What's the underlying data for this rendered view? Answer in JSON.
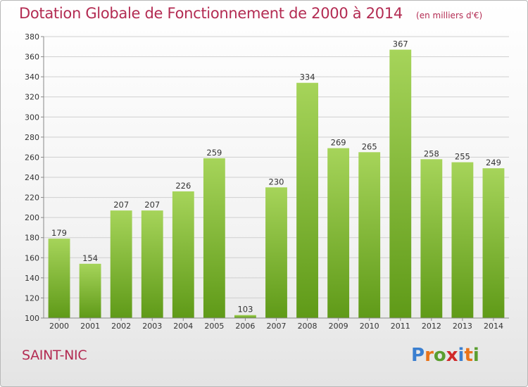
{
  "header": {
    "title": "Dotation Globale de Fonctionnement de 2000 à 2014",
    "subtitle": "(en milliers d'€)"
  },
  "footer": {
    "commune": "SAINT-NIC",
    "logo_text": "Proxiti",
    "logo_colors": [
      "#3a7fd0",
      "#e8731a",
      "#5a9e2f",
      "#d02a2a",
      "#3a7fd0",
      "#e8731a",
      "#5a9e2f"
    ]
  },
  "chart_data": {
    "type": "bar",
    "title": "Dotation Globale de Fonctionnement de 2000 à 2014",
    "subtitle": "(en milliers d'€)",
    "xlabel": "",
    "ylabel": "",
    "categories": [
      "2000",
      "2001",
      "2002",
      "2003",
      "2004",
      "2005",
      "2006",
      "2007",
      "2008",
      "2009",
      "2010",
      "2011",
      "2012",
      "2013",
      "2014"
    ],
    "values": [
      179,
      154,
      207,
      207,
      226,
      259,
      103,
      230,
      334,
      269,
      265,
      367,
      258,
      255,
      249
    ],
    "ylim": [
      100,
      380
    ],
    "yticks": [
      100,
      120,
      140,
      160,
      180,
      200,
      220,
      240,
      260,
      280,
      300,
      320,
      340,
      360,
      380
    ],
    "grid": true,
    "colors": {
      "bar_top": "#a6d45a",
      "bar_bottom": "#5f9a18",
      "grid": "#cfcfcf",
      "axis": "#888888",
      "text": "#333333"
    }
  }
}
